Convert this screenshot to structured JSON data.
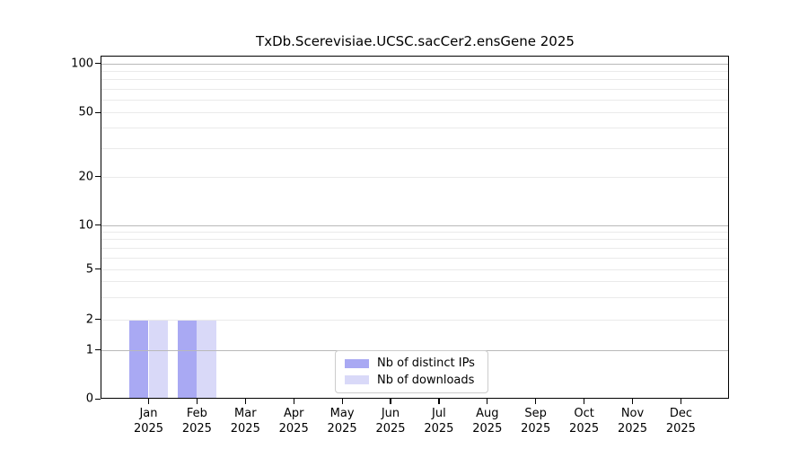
{
  "chart_data": {
    "type": "bar",
    "title": "TxDb.Scerevisiae.UCSC.sacCer2.ensGene 2025",
    "categories": [
      "Jan",
      "Feb",
      "Mar",
      "Apr",
      "May",
      "Jun",
      "Jul",
      "Aug",
      "Sep",
      "Oct",
      "Nov",
      "Dec"
    ],
    "year_label": "2025",
    "series": [
      {
        "name": "Nb of distinct IPs",
        "color": "#a9a9f3",
        "values": [
          2,
          2,
          0,
          0,
          0,
          0,
          0,
          0,
          0,
          0,
          0,
          0
        ]
      },
      {
        "name": "Nb of downloads",
        "color": "#d9d9f8",
        "values": [
          2,
          2,
          0,
          0,
          0,
          0,
          0,
          0,
          0,
          0,
          0,
          0
        ]
      }
    ],
    "yticks": [
      0,
      1,
      2,
      5,
      10,
      20,
      50,
      100
    ],
    "ylim": [
      0,
      112
    ],
    "scale": "symlog",
    "grid": true,
    "legend_position": "lower center",
    "colors": {
      "major_grid": "#b9b9b9",
      "minor_grid": "#eaeaea",
      "axis": "#000000",
      "background": "#ffffff"
    }
  }
}
